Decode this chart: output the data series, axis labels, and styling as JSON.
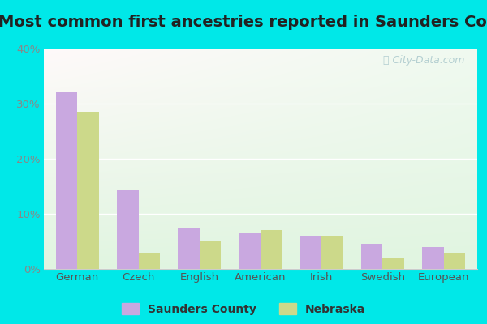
{
  "title": "Most common first ancestries reported in Saunders County",
  "categories": [
    "German",
    "Czech",
    "English",
    "American",
    "Irish",
    "Swedish",
    "European"
  ],
  "saunders_values": [
    32.2,
    14.2,
    7.5,
    6.5,
    6.0,
    4.5,
    4.0
  ],
  "nebraska_values": [
    28.5,
    3.0,
    5.0,
    7.0,
    6.0,
    2.0,
    3.0
  ],
  "saunders_color": "#c9a8e0",
  "nebraska_color": "#ccd98a",
  "ylim": [
    0,
    40
  ],
  "yticks": [
    0,
    10,
    20,
    30,
    40
  ],
  "ytick_labels": [
    "0%",
    "10%",
    "20%",
    "30%",
    "40%"
  ],
  "outer_color": "#00e8e8",
  "title_fontsize": 14,
  "watermark": "City-Data.com",
  "legend_label_saunders": "Saunders County",
  "legend_label_nebraska": "Nebraska"
}
